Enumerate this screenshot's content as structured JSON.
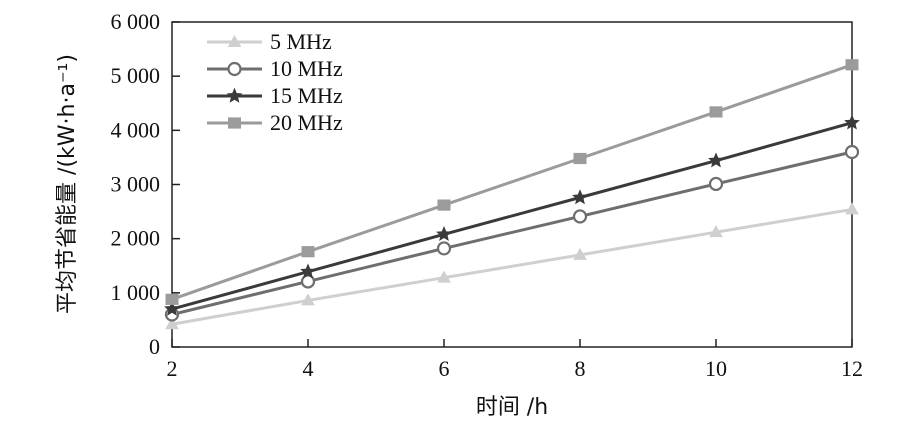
{
  "chart_data": {
    "type": "line",
    "title": "",
    "xlabel": "时间 /h",
    "ylabel": "平均节省能量 /(kW·h·a⁻¹)",
    "x": [
      2,
      4,
      6,
      8,
      10,
      12
    ],
    "x_tick_labels": [
      "2",
      "4",
      "6",
      "8",
      "10",
      "12"
    ],
    "xlim": [
      2,
      12
    ],
    "ylim": [
      0,
      6000
    ],
    "y_ticks": [
      0,
      1000,
      2000,
      3000,
      4000,
      5000,
      6000
    ],
    "y_tick_labels": [
      "0",
      "1 000",
      "2 000",
      "3 000",
      "4 000",
      "5 000",
      "6 000"
    ],
    "grid": false,
    "legend_position": "top-left",
    "series": [
      {
        "name": "5 MHz",
        "marker": "triangle",
        "color": "#cfcfcf",
        "values": [
          420,
          860,
          1280,
          1700,
          2120,
          2540
        ]
      },
      {
        "name": "10 MHz",
        "marker": "circle",
        "color": "#6e6e6e",
        "values": [
          600,
          1210,
          1820,
          2410,
          3010,
          3600
        ]
      },
      {
        "name": "15 MHz",
        "marker": "star",
        "color": "#3a3a3a",
        "values": [
          700,
          1390,
          2080,
          2760,
          3440,
          4140
        ]
      },
      {
        "name": "20 MHz",
        "marker": "square",
        "color": "#9b9b9b",
        "values": [
          880,
          1760,
          2620,
          3480,
          4340,
          5210
        ]
      }
    ]
  }
}
